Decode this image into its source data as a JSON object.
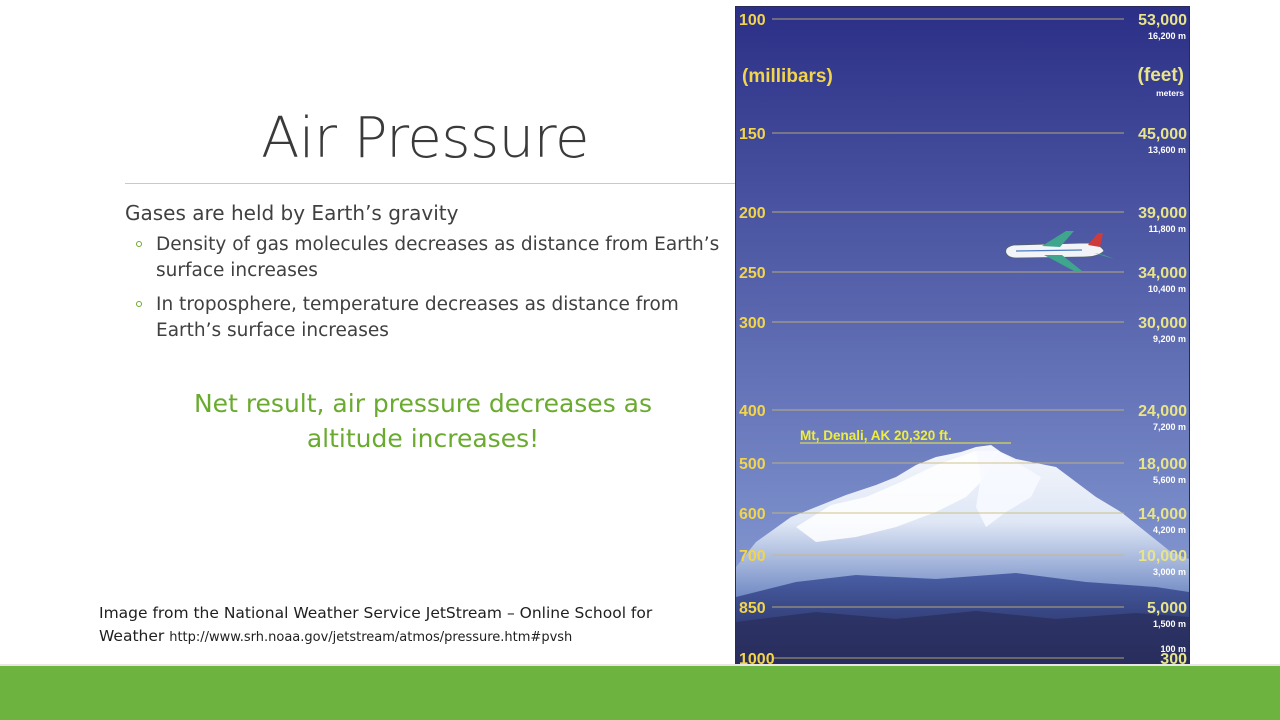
{
  "slide": {
    "title": "Air Pressure",
    "bullet_main": "Gases are held by Earth’s gravity",
    "sub_bullets": [
      "Density of gas molecules decreases as distance from Earth’s surface increases",
      "In troposphere, temperature decreases as distance from Earth’s surface increases"
    ],
    "conclusion": "Net result, air pressure decreases as altitude increases!",
    "citation_text": "Image from the National Weather Service JetStream – Online School for Weather",
    "citation_url": "http://www.srh.noaa.gov/jetstream/atmos/pressure.htm#pvsh"
  },
  "figure": {
    "left_unit": "(millibars)",
    "right_unit": "(feet)",
    "right_subunit": "meters",
    "mountain_label": "Mt, Denali, AK  20,320 ft.",
    "levels": [
      {
        "mb": "100",
        "feet": "53,000",
        "meters": "16,200 m"
      },
      {
        "mb": "150",
        "feet": "45,000",
        "meters": "13,600 m"
      },
      {
        "mb": "200",
        "feet": "39,000",
        "meters": "11,800 m"
      },
      {
        "mb": "250",
        "feet": "34,000",
        "meters": "10,400 m"
      },
      {
        "mb": "300",
        "feet": "30,000",
        "meters": "9,200 m"
      },
      {
        "mb": "400",
        "feet": "24,000",
        "meters": "7,200 m"
      },
      {
        "mb": "500",
        "feet": "18,000",
        "meters": "5,600 m"
      },
      {
        "mb": "600",
        "feet": "14,000",
        "meters": "4,200 m"
      },
      {
        "mb": "700",
        "feet": "10,000",
        "meters": "3,000 m"
      },
      {
        "mb": "850",
        "feet": "5,000",
        "meters": "1,500 m"
      },
      {
        "mb": "1000",
        "feet": "300",
        "meters": "100 m"
      }
    ],
    "colors": {
      "sky_top": "#2b2f86",
      "sky_bottom": "#8fa6dc",
      "mb_label": "#f2d54a",
      "feet_label": "#e8e48a",
      "level_line": "#c9b877",
      "meters_label": "#ffffff"
    }
  },
  "theme": {
    "accent_green": "#6aab2f",
    "footer_green": "#6db33f"
  }
}
